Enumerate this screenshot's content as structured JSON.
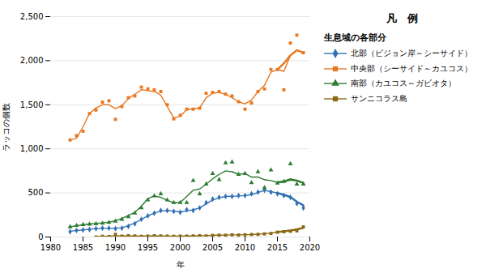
{
  "chart_data": {
    "type": "line",
    "title": "",
    "xlabel": "年",
    "ylabel": "ラッコの個数",
    "xlim": [
      1980,
      2020
    ],
    "ylim": [
      0,
      2500
    ],
    "xticks": [
      1980,
      1985,
      1990,
      1995,
      2000,
      2005,
      2010,
      2015,
      2020
    ],
    "yticks": [
      0,
      500,
      {
        "value": 1000,
        "label": "1,000"
      },
      {
        "value": 1500,
        "label": "1,500"
      },
      {
        "value": 2000,
        "label": "2,000"
      },
      {
        "value": 2500,
        "label": "2,500"
      }
    ],
    "grid": "y",
    "legend_title": "凡　例",
    "legend_subtitle": "生息域の各部分",
    "series": [
      {
        "name": "北部（ビジョン岸～シーサイド）",
        "color": "#3070b3",
        "marker": "diamond",
        "x": [
          1983,
          1984,
          1985,
          1986,
          1987,
          1988,
          1989,
          1990,
          1991,
          1992,
          1993,
          1994,
          1995,
          1996,
          1997,
          1998,
          1999,
          2000,
          2001,
          2002,
          2003,
          2004,
          2005,
          2006,
          2007,
          2008,
          2009,
          2010,
          2011,
          2012,
          2013,
          2014,
          2015,
          2016,
          2017,
          2018,
          2019
        ],
        "values": [
          60,
          75,
          80,
          85,
          95,
          100,
          100,
          95,
          100,
          120,
          150,
          200,
          240,
          270,
          300,
          300,
          290,
          280,
          310,
          300,
          330,
          390,
          430,
          450,
          460,
          460,
          470,
          470,
          490,
          510,
          530,
          510,
          490,
          470,
          450,
          380,
          330
        ],
        "smooth": [
          65,
          72,
          80,
          88,
          95,
          98,
          100,
          100,
          105,
          130,
          160,
          200,
          240,
          270,
          295,
          300,
          295,
          285,
          295,
          308,
          330,
          375,
          420,
          445,
          460,
          462,
          465,
          470,
          480,
          505,
          530,
          515,
          500,
          478,
          455,
          400,
          360
        ],
        "trend_x": [
          2015,
          2016,
          2017,
          2018,
          2019
        ],
        "trend": [
          500,
          478,
          455,
          400,
          360
        ]
      },
      {
        "name": "中央部（シーサイド～カユコス）",
        "color": "#e87722",
        "marker": "square",
        "x": [
          1983,
          1984,
          1985,
          1986,
          1987,
          1988,
          1989,
          1990,
          1991,
          1992,
          1993,
          1994,
          1995,
          1996,
          1997,
          1998,
          1999,
          2000,
          2001,
          2002,
          2003,
          2004,
          2005,
          2006,
          2007,
          2008,
          2009,
          2010,
          2011,
          2012,
          2013,
          2014,
          2015,
          2016,
          2017,
          2018,
          2019
        ],
        "values": [
          1100,
          1150,
          1200,
          1400,
          1440,
          1530,
          1545,
          1335,
          1480,
          1580,
          1600,
          1700,
          1680,
          1670,
          1650,
          1500,
          1340,
          1380,
          1450,
          1450,
          1460,
          1630,
          1640,
          1650,
          1620,
          1600,
          1535,
          1450,
          1520,
          1650,
          1680,
          1900,
          1900,
          1670,
          2200,
          2290,
          2090
        ],
        "smooth": [
          1100,
          1120,
          1250,
          1400,
          1465,
          1500,
          1500,
          1455,
          1490,
          1570,
          1620,
          1670,
          1660,
          1650,
          1610,
          1480,
          1350,
          1370,
          1445,
          1455,
          1465,
          1580,
          1630,
          1640,
          1620,
          1580,
          1535,
          1510,
          1555,
          1650,
          1720,
          1870,
          1900,
          1880,
          2060,
          2120,
          2090
        ],
        "trend_x": [
          2015,
          2016,
          2017,
          2018,
          2019
        ],
        "trend": [
          1900,
          1970,
          2060,
          2120,
          2090
        ]
      },
      {
        "name": "南部（カユコス～ガビオタ）",
        "color": "#2e7d32",
        "marker": "triangle",
        "x": [
          1983,
          1984,
          1985,
          1986,
          1987,
          1988,
          1989,
          1990,
          1991,
          1992,
          1993,
          1994,
          1995,
          1996,
          1997,
          1998,
          1999,
          2000,
          2001,
          2002,
          2003,
          2004,
          2005,
          2006,
          2007,
          2008,
          2009,
          2010,
          2011,
          2012,
          2013,
          2014,
          2015,
          2016,
          2017,
          2018,
          2019
        ],
        "values": [
          115,
          130,
          140,
          145,
          150,
          155,
          165,
          180,
          200,
          230,
          270,
          330,
          420,
          465,
          490,
          420,
          390,
          390,
          390,
          640,
          490,
          600,
          720,
          650,
          840,
          850,
          710,
          720,
          615,
          740,
          560,
          760,
          610,
          630,
          830,
          600,
          600
        ],
        "smooth": [
          115,
          128,
          140,
          147,
          155,
          160,
          168,
          185,
          210,
          245,
          280,
          350,
          435,
          465,
          450,
          415,
          390,
          390,
          460,
          530,
          545,
          600,
          660,
          710,
          750,
          740,
          710,
          720,
          680,
          680,
          650,
          640,
          620,
          630,
          660,
          640,
          610
        ],
        "trend_x": [
          2015,
          2016,
          2017,
          2018,
          2019
        ],
        "trend": [
          620,
          630,
          650,
          640,
          615
        ]
      },
      {
        "name": "サンニコラス島",
        "color": "#8b6914",
        "marker": "square",
        "x": [
          1987,
          1988,
          1989,
          1990,
          1991,
          1992,
          1993,
          1994,
          1995,
          1996,
          1997,
          1998,
          1999,
          2000,
          2001,
          2002,
          2003,
          2004,
          2005,
          2006,
          2007,
          2008,
          2009,
          2010,
          2011,
          2012,
          2013,
          2014,
          2015,
          2016,
          2017,
          2018,
          2019
        ],
        "values": [
          0,
          8,
          5,
          30,
          10,
          15,
          12,
          8,
          10,
          15,
          12,
          10,
          8,
          10,
          10,
          12,
          15,
          12,
          18,
          20,
          20,
          25,
          22,
          25,
          28,
          30,
          35,
          40,
          55,
          60,
          65,
          70,
          115
        ],
        "smooth": [
          4,
          7,
          10,
          15,
          12,
          13,
          12,
          10,
          11,
          13,
          12,
          10,
          9,
          10,
          11,
          12,
          14,
          15,
          18,
          20,
          22,
          24,
          24,
          26,
          28,
          32,
          38,
          45,
          55,
          62,
          68,
          80,
          100
        ],
        "trend_x": [
          2015,
          2016,
          2017,
          2018,
          2019
        ],
        "trend": [
          55,
          65,
          75,
          88,
          105
        ]
      }
    ]
  }
}
